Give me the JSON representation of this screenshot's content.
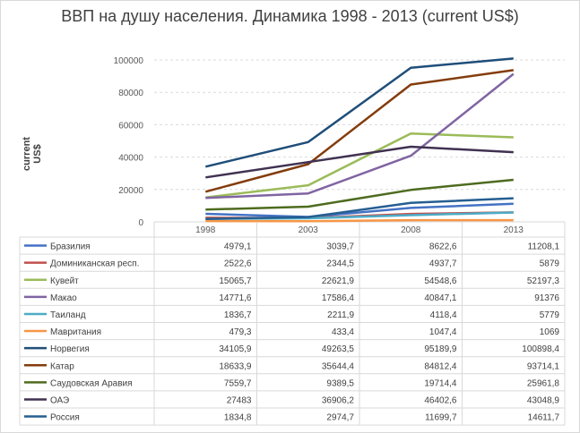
{
  "chart_data": {
    "type": "line",
    "title": "ВВП на душу населения. Динамика 1998 - 2013 (current US$)",
    "xlabel": "",
    "ylabel": "current US$",
    "categories": [
      "1998",
      "2003",
      "2008",
      "2013"
    ],
    "ylim": [
      0,
      100000
    ],
    "yticks": [
      0,
      20000,
      40000,
      60000,
      80000,
      100000
    ],
    "grid": "horizontal dashed",
    "legend": "data-table",
    "series": [
      {
        "name": "Бразилия",
        "color": "#4472c4",
        "values": [
          4979.1,
          3039.7,
          8622.6,
          11208.1
        ],
        "labels": [
          "4979,1",
          "3039,7",
          "8622,6",
          "11208,1"
        ]
      },
      {
        "name": "Доминиканская респ.",
        "color": "#c0504d",
        "values": [
          2522.6,
          2344.5,
          4937.7,
          5879
        ],
        "labels": [
          "2522,6",
          "2344,5",
          "4937,7",
          "5879"
        ]
      },
      {
        "name": "Кувейт",
        "color": "#9bbb59",
        "values": [
          15065.7,
          22621.9,
          54548.6,
          52197.3
        ],
        "labels": [
          "15065,7",
          "22621,9",
          "54548,6",
          "52197,3"
        ]
      },
      {
        "name": "Макао",
        "color": "#8064a2",
        "values": [
          14771.6,
          17586.4,
          40847.1,
          91376
        ],
        "labels": [
          "14771,6",
          "17586,4",
          "40847,1",
          "91376"
        ]
      },
      {
        "name": "Таиланд",
        "color": "#4bacc6",
        "values": [
          1836.7,
          2211.9,
          4118.4,
          5779
        ],
        "labels": [
          "1836,7",
          "2211,9",
          "4118,4",
          "5779"
        ]
      },
      {
        "name": "Мавритания",
        "color": "#f79646",
        "values": [
          479.3,
          433.4,
          1047.4,
          1069
        ],
        "labels": [
          "479,3",
          "433,4",
          "1047,4",
          "1069"
        ]
      },
      {
        "name": "Норвегия",
        "color": "#1f4e79",
        "values": [
          34105.9,
          49263.5,
          95189.9,
          100898.4
        ],
        "labels": [
          "34105,9",
          "49263,5",
          "95189,9",
          "100898,4"
        ]
      },
      {
        "name": "Катар",
        "color": "#843c0c",
        "values": [
          18633.9,
          35644.4,
          84812.4,
          93714.1
        ],
        "labels": [
          "18633,9",
          "35644,4",
          "84812,4",
          "93714,1"
        ]
      },
      {
        "name": "Саудовская Аравия",
        "color": "#4e6b1f",
        "values": [
          7559.7,
          9389.5,
          19714.4,
          25961.8
        ],
        "labels": [
          "7559,7",
          "9389,5",
          "19714,4",
          "25961,8"
        ]
      },
      {
        "name": "ОАЭ",
        "color": "#403151",
        "values": [
          27483,
          36906.2,
          46402.6,
          43048.9
        ],
        "labels": [
          "27483",
          "36906,2",
          "46402,6",
          "43048,9"
        ]
      },
      {
        "name": "Россия",
        "color": "#255e91",
        "values": [
          1834.8,
          2974.7,
          11699.7,
          14611.7
        ],
        "labels": [
          "1834,8",
          "2974,7",
          "11699,7",
          "14611,7"
        ]
      }
    ]
  }
}
